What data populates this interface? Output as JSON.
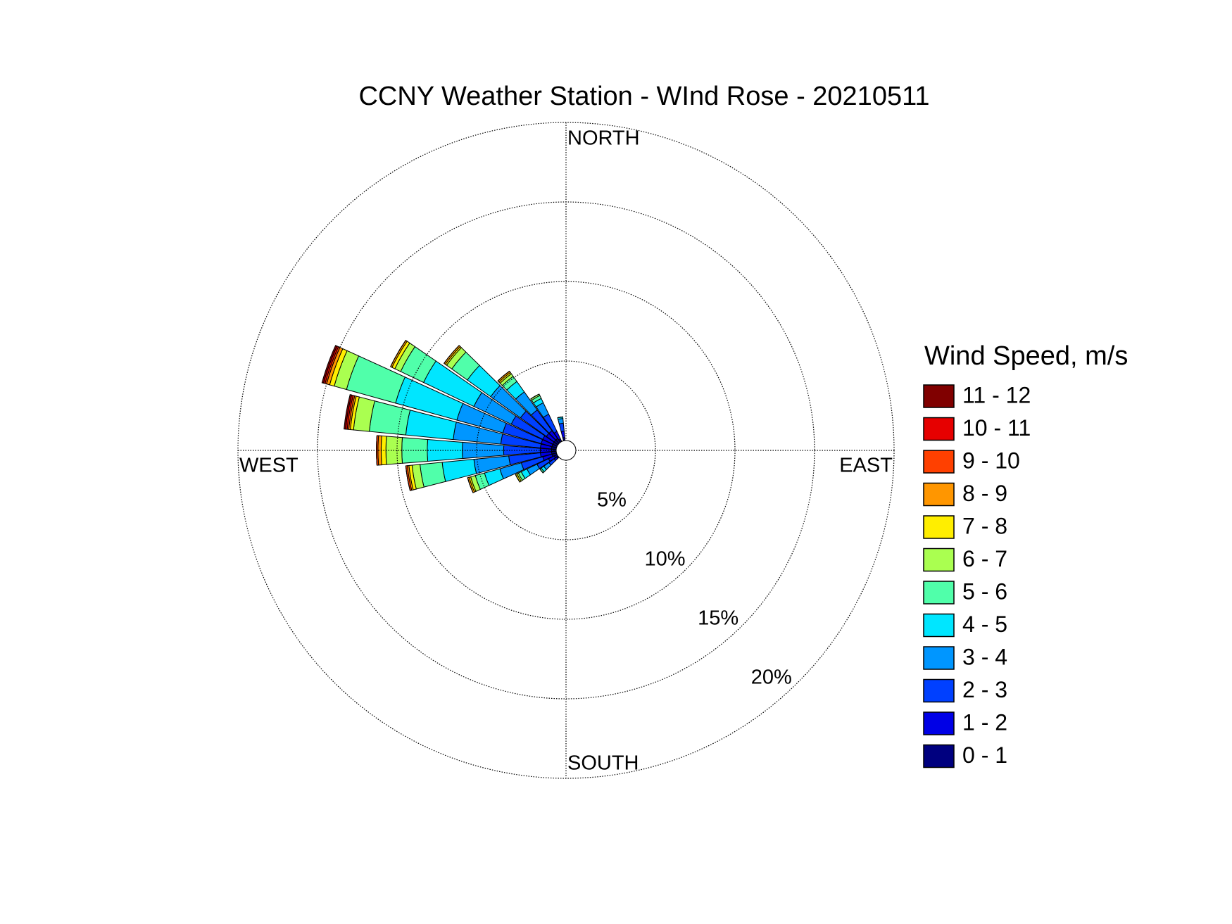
{
  "chart_data": {
    "type": "windrose",
    "title": "CCNY Weather Station - WInd Rose - 20210511",
    "direction_labels": [
      "NORTH",
      "EAST",
      "SOUTH",
      "WEST"
    ],
    "legend_title": "Wind Speed, m/s",
    "rlim": [
      0,
      20
    ],
    "rticks": [
      {
        "value": 5,
        "label": "5%"
      },
      {
        "value": 10,
        "label": "10%"
      },
      {
        "value": 15,
        "label": "15%"
      },
      {
        "value": 20,
        "label": "20%"
      }
    ],
    "grid": true,
    "x": [
      230,
      240,
      250,
      260,
      270,
      280,
      290,
      300,
      310,
      320,
      330,
      350
    ],
    "series": [
      {
        "name": "0 - 1",
        "color": "#00007f",
        "values": [
          0.1,
          0.2,
          0.3,
          0.3,
          0.3,
          0.3,
          0.3,
          0.3,
          0.3,
          0.3,
          0.2,
          0.2
        ]
      },
      {
        "name": "1 - 2",
        "color": "#0000e6",
        "values": [
          0.2,
          0.4,
          0.6,
          0.7,
          0.7,
          0.7,
          0.7,
          0.7,
          0.6,
          0.6,
          0.5,
          0.4
        ]
      },
      {
        "name": "2 - 3",
        "color": "#0040ff",
        "values": [
          0.4,
          0.8,
          1.4,
          2.0,
          2.3,
          2.5,
          2.5,
          2.2,
          2.0,
          1.6,
          1.2,
          0.5
        ]
      },
      {
        "name": "3 - 4",
        "color": "#0096ff",
        "values": [
          0.4,
          0.7,
          1.4,
          2.2,
          2.6,
          3.0,
          3.0,
          2.6,
          2.3,
          1.4,
          0.8,
          0.3
        ]
      },
      {
        "name": "4 - 5",
        "color": "#00e6ff",
        "values": [
          0.2,
          0.4,
          1.0,
          2.0,
          2.2,
          3.0,
          4.0,
          3.5,
          1.8,
          0.8,
          0.3,
          0.1
        ]
      },
      {
        "name": "5 - 6",
        "color": "#50ffaa",
        "values": [
          0.1,
          0.2,
          0.6,
          1.4,
          1.6,
          2.3,
          3.2,
          1.6,
          1.2,
          0.4,
          0.2,
          0
        ]
      },
      {
        "name": "6 - 7",
        "color": "#aaff50",
        "values": [
          0,
          0.1,
          0.3,
          0.5,
          1.0,
          1.0,
          0.8,
          0.4,
          0.4,
          0.2,
          0.1,
          0
        ]
      },
      {
        "name": "7 - 8",
        "color": "#ffee00",
        "values": [
          0,
          0.1,
          0.1,
          0.2,
          0.3,
          0.2,
          0.3,
          0.2,
          0.1,
          0.1,
          0,
          0
        ]
      },
      {
        "name": "8 - 9",
        "color": "#ff9600",
        "values": [
          0,
          0,
          0.1,
          0.1,
          0.2,
          0.1,
          0.2,
          0.1,
          0.1,
          0.1,
          0,
          0
        ]
      },
      {
        "name": "9 - 10",
        "color": "#ff4000",
        "values": [
          0,
          0,
          0,
          0.1,
          0.1,
          0.1,
          0.1,
          0,
          0,
          0,
          0,
          0
        ]
      },
      {
        "name": "10 - 11",
        "color": "#e60000",
        "values": [
          0,
          0,
          0,
          0,
          0,
          0.1,
          0.1,
          0,
          0,
          0,
          0,
          0
        ]
      },
      {
        "name": "11 - 12",
        "color": "#800000",
        "values": [
          0,
          0,
          0,
          0,
          0,
          0.1,
          0.1,
          0,
          0,
          0,
          0,
          0
        ]
      }
    ]
  }
}
